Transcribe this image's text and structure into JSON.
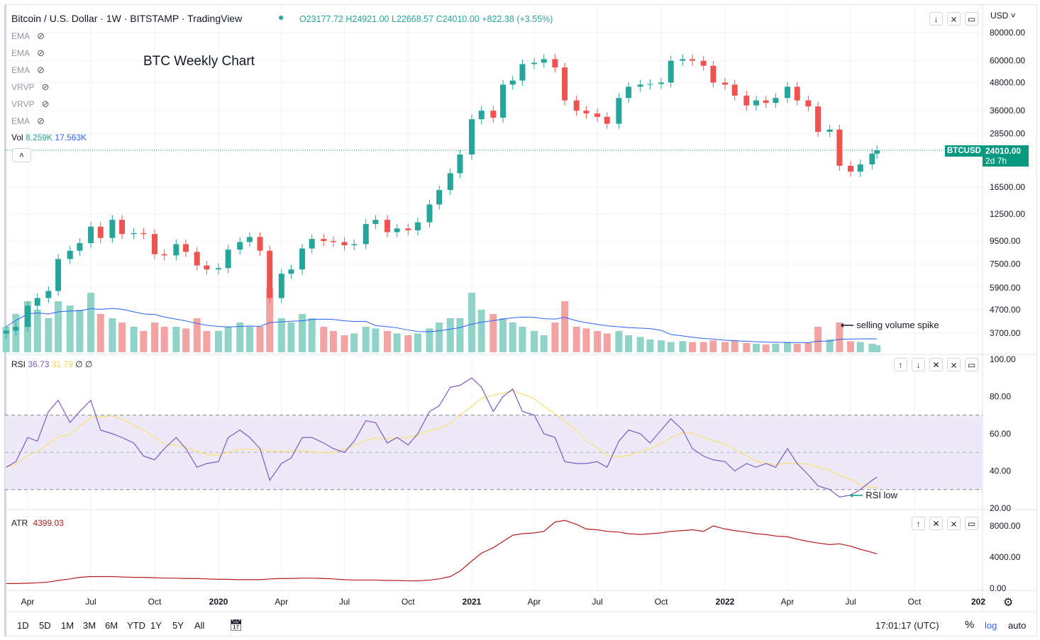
{
  "header": {
    "symbol_line": "Bitcoin / U.S. Dollar · 1W · BITSTAMP · TradingView",
    "open": "O23177.72",
    "high": "H24921.00",
    "low": "L22668.57",
    "close": "C24010.00",
    "change": "+822.38 (+3.55%)"
  },
  "indicators": [
    {
      "label": "EMA"
    },
    {
      "label": "EMA"
    },
    {
      "label": "EMA"
    },
    {
      "label": "VRVP"
    },
    {
      "label": "VRVP"
    },
    {
      "label": "EMA"
    }
  ],
  "vol_legend": {
    "label": "Vol",
    "value": "8.259K",
    "ma": "17.563K"
  },
  "rsi_legend": {
    "label": "RSI",
    "value": "36.73",
    "ma": "31.79",
    "extra1": "∅",
    "extra2": "∅"
  },
  "atr_legend": {
    "label": "ATR",
    "value": "4399.03"
  },
  "annotations": {
    "title": "BTC Weekly Chart",
    "volume_note": "selling volume spike",
    "rsi_note": "RSI low"
  },
  "price_axis": {
    "currency": "USD",
    "ticks": [
      "80000.00",
      "60000.00",
      "48000.00",
      "36000.00",
      "28500.00",
      "16500.00",
      "12500.00",
      "9500.00",
      "7500.00",
      "5900.00",
      "4700.00",
      "3700.00"
    ],
    "last_tag_symbol": "BTCUSD",
    "last_tag_price": "24010.00",
    "last_tag_countdown": "2d 7h"
  },
  "rsi_axis": {
    "ticks": [
      "100.00",
      "80.00",
      "60.00",
      "40.00",
      "20.00"
    ]
  },
  "atr_axis": {
    "ticks": [
      "8000.00",
      "4000.00",
      "0.00"
    ]
  },
  "time_axis": [
    {
      "label": "Apr",
      "date": "2019-04-01"
    },
    {
      "label": "Jul",
      "date": "2019-07-01"
    },
    {
      "label": "Oct",
      "date": "2019-10-01"
    },
    {
      "label": "2020",
      "date": "2020-01-01"
    },
    {
      "label": "Apr",
      "date": "2020-04-01"
    },
    {
      "label": "Jul",
      "date": "2020-07-01"
    },
    {
      "label": "Oct",
      "date": "2020-10-01"
    },
    {
      "label": "2021",
      "date": "2021-01-01"
    },
    {
      "label": "Apr",
      "date": "2021-04-01"
    },
    {
      "label": "Jul",
      "date": "2021-07-01"
    },
    {
      "label": "Oct",
      "date": "2021-10-01"
    },
    {
      "label": "2022",
      "date": "2022-01-01"
    },
    {
      "label": "Apr",
      "date": "2022-04-01"
    },
    {
      "label": "Jul",
      "date": "2022-07-01"
    },
    {
      "label": "Oct",
      "date": "2022-10-01"
    },
    {
      "label": "202",
      "date": "2023-01-01"
    }
  ],
  "toolbar": {
    "ranges": [
      "1D",
      "5D",
      "1M",
      "3M",
      "6M",
      "YTD",
      "1Y",
      "5Y",
      "All"
    ],
    "clock": "17:01:17 (UTC)",
    "percent": "%",
    "log": "log",
    "auto": "auto"
  },
  "colors": {
    "up": "#26a69a",
    "down": "#ef5350",
    "vol_up": "#8fd3c9",
    "vol_down": "#f3a3a2",
    "vol_ma": "#2962ff",
    "rsi": "#7e57c2",
    "rsi_ma": "#f7e27a",
    "rsi_band": "#ede9f8",
    "atr": "#b71c1c",
    "tag": "#089981"
  },
  "chart_data": {
    "type": "candlestick",
    "scale": "log",
    "ylim": [
      3500,
      80000
    ],
    "dates": [
      "2019-03-01",
      "2019-03-15",
      "2019-04-01",
      "2019-04-15",
      "2019-05-01",
      "2019-05-15",
      "2019-06-01",
      "2019-06-15",
      "2019-07-01",
      "2019-07-15",
      "2019-08-01",
      "2019-08-15",
      "2019-09-01",
      "2019-09-15",
      "2019-10-01",
      "2019-10-15",
      "2019-11-01",
      "2019-11-15",
      "2019-12-01",
      "2019-12-15",
      "2020-01-01",
      "2020-01-15",
      "2020-02-01",
      "2020-02-15",
      "2020-03-01",
      "2020-03-15",
      "2020-04-01",
      "2020-04-15",
      "2020-05-01",
      "2020-05-15",
      "2020-06-01",
      "2020-06-15",
      "2020-07-01",
      "2020-07-15",
      "2020-08-01",
      "2020-08-15",
      "2020-09-01",
      "2020-09-15",
      "2020-10-01",
      "2020-10-15",
      "2020-11-01",
      "2020-11-15",
      "2020-12-01",
      "2020-12-15",
      "2021-01-01",
      "2021-01-15",
      "2021-02-01",
      "2021-02-15",
      "2021-03-01",
      "2021-03-15",
      "2021-04-01",
      "2021-04-15",
      "2021-05-01",
      "2021-05-15",
      "2021-06-01",
      "2021-06-15",
      "2021-07-01",
      "2021-07-15",
      "2021-08-01",
      "2021-08-15",
      "2021-09-01",
      "2021-09-15",
      "2021-10-01",
      "2021-10-15",
      "2021-11-01",
      "2021-11-15",
      "2021-12-01",
      "2021-12-15",
      "2022-01-01",
      "2022-01-15",
      "2022-02-01",
      "2022-02-15",
      "2022-03-01",
      "2022-03-15",
      "2022-04-01",
      "2022-04-15",
      "2022-05-01",
      "2022-05-15",
      "2022-06-01",
      "2022-06-15",
      "2022-07-01",
      "2022-07-15",
      "2022-08-01",
      "2022-08-08"
    ],
    "close": [
      3800,
      3950,
      4900,
      5300,
      5700,
      7900,
      8600,
      9300,
      11000,
      9800,
      11800,
      10200,
      10300,
      10200,
      8300,
      8200,
      9200,
      8500,
      7400,
      7100,
      7200,
      8700,
      9400,
      9900,
      8600,
      5300,
      6800,
      7100,
      8800,
      9700,
      9500,
      9400,
      9100,
      9200,
      11300,
      11800,
      10400,
      10800,
      10600,
      11500,
      13800,
      16000,
      19000,
      23000,
      33000,
      36000,
      33500,
      47000,
      49000,
      58000,
      58800,
      61000,
      56000,
      40000,
      36000,
      35000,
      33800,
      31500,
      41000,
      46000,
      47000,
      47300,
      48000,
      60000,
      61000,
      60000,
      57000,
      48000,
      47000,
      42000,
      38000,
      40000,
      39000,
      41000,
      46000,
      40000,
      37600,
      29000,
      29700,
      20500,
      19300,
      20800,
      23200,
      24010
    ],
    "volume_k": [
      30,
      45,
      60,
      50,
      40,
      60,
      55,
      50,
      70,
      45,
      40,
      35,
      30,
      25,
      35,
      30,
      30,
      28,
      40,
      25,
      25,
      30,
      35,
      30,
      30,
      75,
      40,
      35,
      45,
      40,
      30,
      25,
      20,
      22,
      30,
      28,
      25,
      22,
      20,
      22,
      28,
      35,
      40,
      40,
      70,
      50,
      45,
      40,
      35,
      30,
      25,
      20,
      35,
      60,
      30,
      28,
      25,
      22,
      25,
      20,
      18,
      15,
      14,
      12,
      13,
      12,
      12,
      14,
      12,
      14,
      11,
      10,
      9,
      10,
      12,
      10,
      11,
      30,
      15,
      35,
      13,
      12,
      10,
      8.259
    ],
    "rsi": [
      42,
      45,
      58,
      56,
      72,
      78,
      66,
      72,
      78,
      62,
      60,
      58,
      55,
      48,
      46,
      52,
      58,
      52,
      42,
      44,
      45,
      58,
      62,
      58,
      52,
      35,
      44,
      47,
      58,
      58,
      55,
      52,
      50,
      56,
      67,
      66,
      55,
      58,
      54,
      60,
      72,
      75,
      85,
      86,
      90,
      85,
      72,
      80,
      84,
      72,
      70,
      60,
      58,
      45,
      44,
      44,
      45,
      42,
      56,
      62,
      60,
      55,
      62,
      68,
      62,
      52,
      48,
      46,
      45,
      40,
      44,
      42,
      44,
      42,
      52,
      44,
      38,
      32,
      30,
      26,
      27,
      30,
      35,
      36.73
    ],
    "rsi_levels": [
      70,
      50,
      30
    ],
    "rsi_ylim": [
      20,
      100
    ],
    "atr": [
      600,
      600,
      650,
      700,
      800,
      1000,
      1200,
      1400,
      1500,
      1500,
      1500,
      1450,
      1400,
      1400,
      1350,
      1300,
      1300,
      1250,
      1250,
      1200,
      1150,
      1150,
      1100,
      1100,
      1100,
      1200,
      1250,
      1250,
      1300,
      1300,
      1250,
      1200,
      1100,
      1050,
      1050,
      1050,
      1000,
      1000,
      950,
      950,
      1050,
      1200,
      1500,
      2200,
      3500,
      4500,
      5200,
      6000,
      6800,
      7000,
      7100,
      7300,
      8500,
      8700,
      8200,
      7600,
      7500,
      7300,
      7200,
      7000,
      6900,
      7000,
      7100,
      7300,
      7400,
      7500,
      7300,
      8000,
      7600,
      7400,
      7200,
      7000,
      6900,
      6700,
      6600,
      6300,
      6000,
      5800,
      5600,
      5700,
      5400,
      5000,
      4600,
      4399.03
    ],
    "atr_ylim": [
      0,
      8000
    ]
  }
}
